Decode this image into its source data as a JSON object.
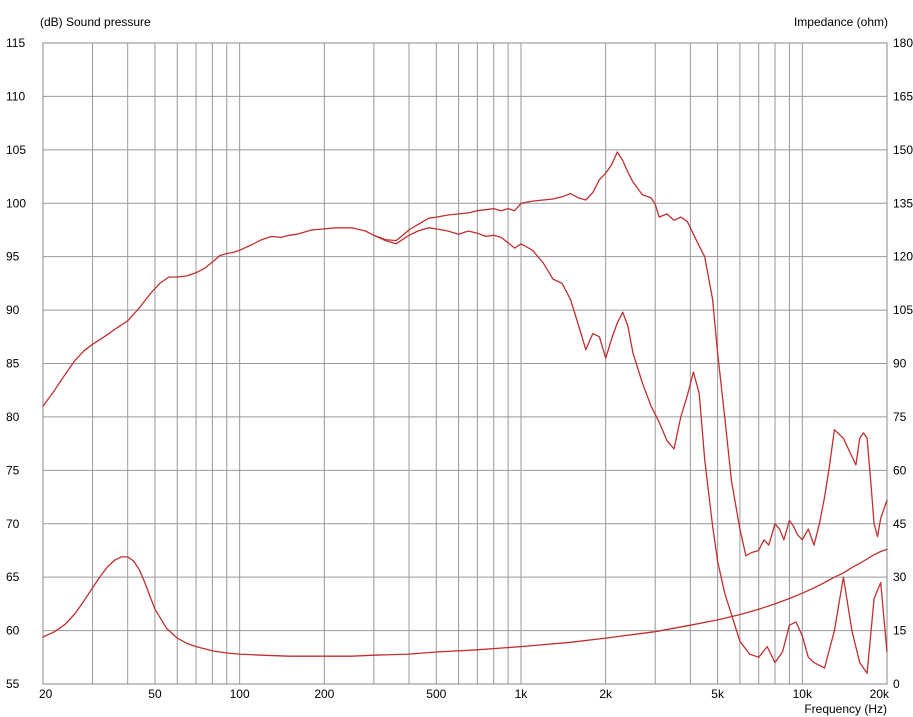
{
  "chart_data": {
    "type": "line",
    "left_axis_label": "(dB)  Sound pressure",
    "right_axis_label": "Impedance  (ohm)",
    "x_axis_label": "Frequency  (Hz)",
    "x_scale": "log",
    "xlim": [
      20,
      20000
    ],
    "ylim_left": [
      55,
      115
    ],
    "ylim_right": [
      0,
      180
    ],
    "grid": true,
    "x_ticks": [
      {
        "value": 20,
        "label": "20"
      },
      {
        "value": 50,
        "label": "50"
      },
      {
        "value": 100,
        "label": "100"
      },
      {
        "value": 200,
        "label": "200"
      },
      {
        "value": 500,
        "label": "500"
      },
      {
        "value": 1000,
        "label": "1k"
      },
      {
        "value": 2000,
        "label": "2k"
      },
      {
        "value": 5000,
        "label": "5k"
      },
      {
        "value": 10000,
        "label": "10k"
      },
      {
        "value": 20000,
        "label": "20k"
      }
    ],
    "y_left_ticks": [
      {
        "value": 115,
        "label": "115"
      },
      {
        "value": 110,
        "label": "110"
      },
      {
        "value": 105,
        "label": "105"
      },
      {
        "value": 100,
        "label": "100"
      },
      {
        "value": 95,
        "label": "95"
      },
      {
        "value": 90,
        "label": "90"
      },
      {
        "value": 85,
        "label": "85"
      },
      {
        "value": 80,
        "label": "80"
      },
      {
        "value": 75,
        "label": "75"
      },
      {
        "value": 70,
        "label": "70"
      },
      {
        "value": 65,
        "label": "65"
      },
      {
        "value": 60,
        "label": "60"
      },
      {
        "value": 55,
        "label": "55"
      }
    ],
    "y_right_ticks": [
      {
        "value": 180,
        "label": "180"
      },
      {
        "value": 165,
        "label": "165"
      },
      {
        "value": 150,
        "label": "150"
      },
      {
        "value": 135,
        "label": "135"
      },
      {
        "value": 120,
        "label": "120"
      },
      {
        "value": 105,
        "label": "105"
      },
      {
        "value": 90,
        "label": "90"
      },
      {
        "value": 75,
        "label": "75"
      },
      {
        "value": 60,
        "label": "60"
      },
      {
        "value": 45,
        "label": "45"
      },
      {
        "value": 30,
        "label": "30"
      },
      {
        "value": 15,
        "label": "15"
      },
      {
        "value": 0,
        "label": "0"
      }
    ],
    "line_color": "#c03030",
    "series": [
      {
        "axis": "left",
        "x": [
          20,
          22,
          24,
          26,
          28,
          30,
          33,
          36,
          40,
          44,
          48,
          52,
          56,
          60,
          65,
          70,
          75,
          80,
          85,
          90,
          95,
          100,
          110,
          120,
          130,
          140,
          150,
          160,
          180,
          200,
          220,
          250,
          280,
          300,
          330,
          360,
          400,
          430,
          470,
          500,
          550,
          600,
          650,
          700,
          750,
          800,
          850,
          900,
          950,
          1000,
          1100,
          1200,
          1300,
          1400,
          1500,
          1600,
          1700,
          1800,
          1900,
          2000,
          2100,
          2200,
          2300,
          2400,
          2500,
          2700,
          2900,
          3100,
          3300,
          3500,
          3700,
          3900,
          4100,
          4300,
          4500,
          4800,
          5000,
          5300,
          5600,
          6000,
          6500,
          7000,
          7500,
          8000,
          8500,
          9000,
          9500,
          10000,
          10500,
          11000,
          12000,
          13000,
          14000,
          15000,
          16000,
          17000,
          18000,
          19000,
          20000
        ],
        "y": [
          81,
          82.5,
          84,
          85.3,
          86.2,
          86.8,
          87.5,
          88.2,
          89,
          90.2,
          91.5,
          92.5,
          93.1,
          93.1,
          93.2,
          93.5,
          93.9,
          94.5,
          95.1,
          95.3,
          95.4,
          95.6,
          96.1,
          96.6,
          96.9,
          96.8,
          97,
          97.1,
          97.5,
          97.6,
          97.7,
          97.7,
          97.4,
          97,
          96.5,
          96.2,
          97,
          97.4,
          97.7,
          97.6,
          97.4,
          97.1,
          97.4,
          97.2,
          96.9,
          97,
          96.8,
          96.3,
          95.8,
          96.2,
          95.6,
          94.4,
          92.9,
          92.5,
          91,
          88.6,
          86.3,
          87.8,
          87.5,
          85.5,
          87.3,
          88.8,
          89.8,
          88.5,
          86,
          83.2,
          81,
          79.5,
          77.8,
          77,
          80,
          82,
          84.2,
          82.2,
          76,
          69.8,
          66.5,
          63.5,
          61.5,
          59,
          57.8,
          57.5,
          58.5,
          57,
          58,
          60.5,
          60.8,
          59.5,
          57.5,
          57,
          56.5,
          60,
          65,
          60,
          57,
          56,
          63,
          64.5,
          58
        ]
      },
      {
        "axis": "left",
        "x": [
          300,
          330,
          360,
          400,
          430,
          470,
          500,
          550,
          600,
          650,
          700,
          750,
          800,
          850,
          900,
          950,
          1000,
          1100,
          1200,
          1300,
          1400,
          1500,
          1600,
          1700,
          1800,
          1900,
          2000,
          2100,
          2200,
          2300,
          2400,
          2500,
          2700,
          2900,
          3000,
          3100,
          3300,
          3500,
          3700,
          3900,
          4100,
          4300,
          4500,
          4800,
          5000,
          5300,
          5600,
          6000,
          6300,
          6600,
          7000,
          7300,
          7600,
          8000,
          8300,
          8600,
          9000,
          9300,
          9600,
          10000,
          10500,
          11000,
          11500,
          12000,
          12500,
          13000,
          14000,
          15000,
          15500,
          16000,
          16500,
          17000,
          17500,
          18000,
          18500,
          19000,
          20000
        ],
        "y": [
          97,
          96.6,
          96.5,
          97.5,
          98,
          98.6,
          98.7,
          98.9,
          99,
          99.1,
          99.3,
          99.4,
          99.5,
          99.3,
          99.5,
          99.3,
          100,
          100.2,
          100.3,
          100.4,
          100.6,
          100.9,
          100.5,
          100.3,
          101,
          102.2,
          102.8,
          103.6,
          104.8,
          104,
          102.9,
          102,
          100.8,
          100.5,
          99.9,
          98.7,
          99,
          98.4,
          98.7,
          98.3,
          97.1,
          96,
          95,
          91,
          86,
          80,
          74,
          69.5,
          67,
          67.3,
          67.5,
          68.5,
          68,
          70,
          69.5,
          68.5,
          70.3,
          69.8,
          69,
          68.5,
          69.5,
          68,
          70,
          72.5,
          75.5,
          78.8,
          78,
          76.3,
          75.5,
          78,
          78.5,
          78,
          74,
          70,
          68.8,
          70.5,
          72.2
        ]
      },
      {
        "axis": "left",
        "x": [
          20,
          22,
          24,
          26,
          28,
          30,
          32,
          34,
          36,
          38,
          40,
          42,
          44,
          46,
          48,
          50,
          55,
          60,
          65,
          70,
          75,
          80,
          90,
          100,
          120,
          150,
          200,
          250,
          300,
          400,
          500,
          700,
          1000,
          1500,
          2000,
          3000,
          4000,
          5000,
          6000,
          7000,
          8000,
          9000,
          10000,
          11000,
          12000,
          13000,
          14000,
          15000,
          16000,
          17000,
          18000,
          19000,
          20000
        ],
        "y": [
          59.4,
          59.9,
          60.6,
          61.6,
          62.8,
          64,
          65.1,
          66,
          66.6,
          66.9,
          66.9,
          66.5,
          65.7,
          64.5,
          63.2,
          62,
          60.2,
          59.3,
          58.8,
          58.5,
          58.3,
          58.1,
          57.9,
          57.8,
          57.7,
          57.6,
          57.6,
          57.6,
          57.7,
          57.8,
          58,
          58.2,
          58.5,
          58.9,
          59.3,
          59.9,
          60.5,
          61,
          61.5,
          62,
          62.5,
          63,
          63.5,
          64,
          64.5,
          65,
          65.4,
          65.9,
          66.3,
          66.7,
          67.1,
          67.4,
          67.6
        ]
      }
    ]
  }
}
